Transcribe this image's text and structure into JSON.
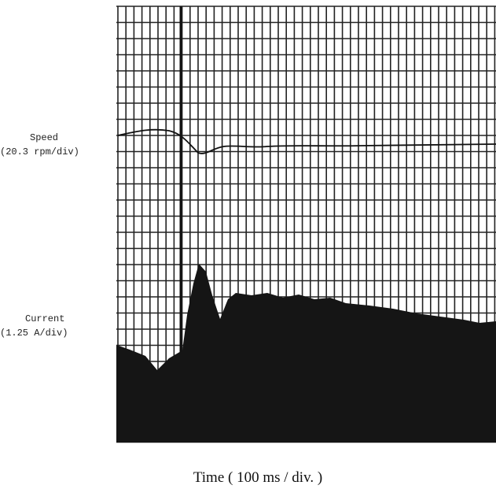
{
  "speed_label": {
    "name": "Speed",
    "scale": "(20.3 rpm/div)"
  },
  "current_label": {
    "name": "Current",
    "scale": "(1.25 A/div)"
  },
  "x_axis_label": "Time ( 100 ms / div. )"
}
